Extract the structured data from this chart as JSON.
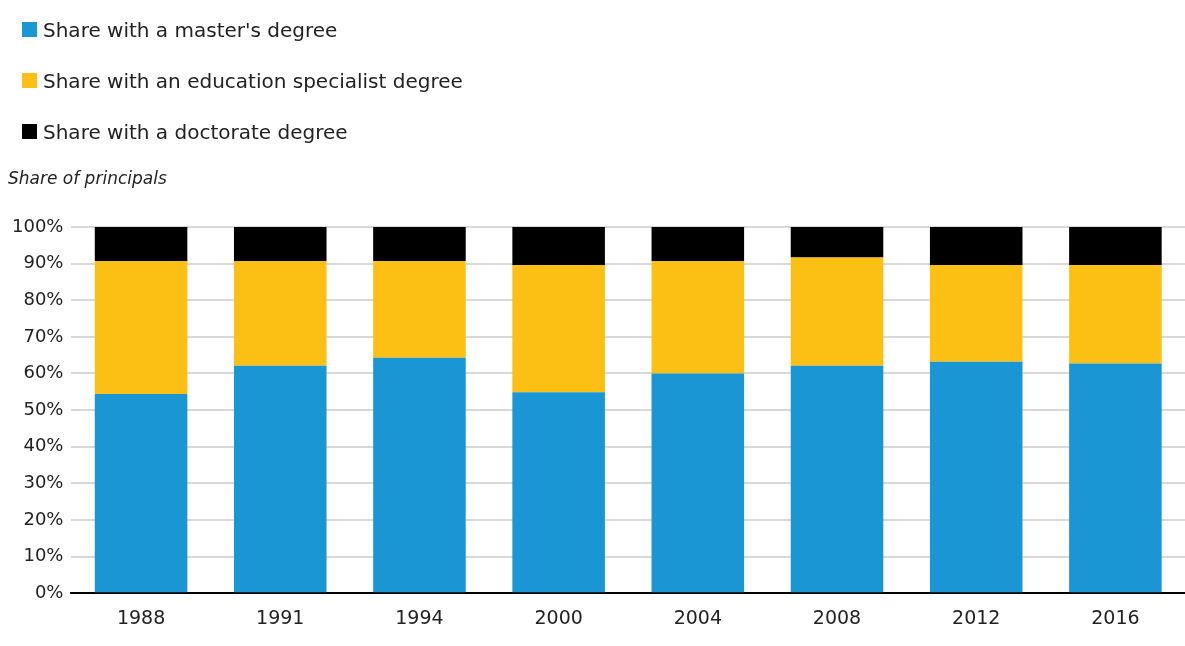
{
  "chart_data": {
    "type": "bar",
    "stacked": true,
    "ylabel": "Share of principals",
    "categories": [
      "1988",
      "1991",
      "1994",
      "2000",
      "2004",
      "2008",
      "2012",
      "2016"
    ],
    "series": [
      {
        "name": "Share with a master's degree",
        "color": "#1b96d4",
        "values": [
          54.4,
          62.1,
          64.3,
          54.9,
          60.0,
          62.1,
          63.2,
          62.7
        ]
      },
      {
        "name": "Share with an education specialist degree",
        "color": "#fcbf14",
        "values": [
          36.3,
          28.6,
          26.4,
          34.7,
          30.7,
          29.6,
          26.4,
          26.9
        ]
      },
      {
        "name": "Share with a doctorate degree",
        "color": "#000000",
        "values": [
          9.3,
          9.3,
          9.3,
          10.4,
          9.3,
          8.3,
          10.4,
          10.4
        ]
      }
    ],
    "ylim": [
      0,
      100
    ],
    "yticks": [
      {
        "value": 0,
        "label": "0%"
      },
      {
        "value": 10,
        "label": "10%"
      },
      {
        "value": 20,
        "label": "20%"
      },
      {
        "value": 30,
        "label": "30%"
      },
      {
        "value": 40,
        "label": "40%"
      },
      {
        "value": 50,
        "label": "50%"
      },
      {
        "value": 60,
        "label": "60%"
      },
      {
        "value": 70,
        "label": "70%"
      },
      {
        "value": 80,
        "label": "80%"
      },
      {
        "value": 90,
        "label": "90%"
      },
      {
        "value": 100,
        "label": "100%"
      }
    ],
    "grid": "y",
    "legend": "top left"
  }
}
